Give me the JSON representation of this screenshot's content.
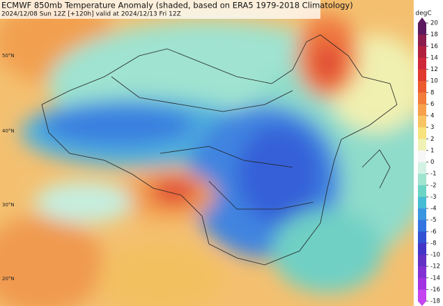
{
  "header": {
    "title": "ECMWF 850mb Temperature Anomaly (shaded, based on ERA5 1979-2018 Climatology)",
    "subtitle": "2024/12/08 Sun 12Z [+120h] valid at 2024/12/13 Fri 12Z"
  },
  "map": {
    "lat_labels": [
      "50°N",
      "40°N",
      "30°N",
      "20°N"
    ]
  },
  "colorbar": {
    "unit": "degC",
    "ticks": [
      20,
      18,
      16,
      14,
      12,
      10,
      8,
      6,
      4,
      3,
      2,
      1,
      0,
      -1,
      -2,
      -3,
      -4,
      -5,
      -6,
      -8,
      -10,
      -12,
      -14,
      -16,
      -18
    ]
  }
}
